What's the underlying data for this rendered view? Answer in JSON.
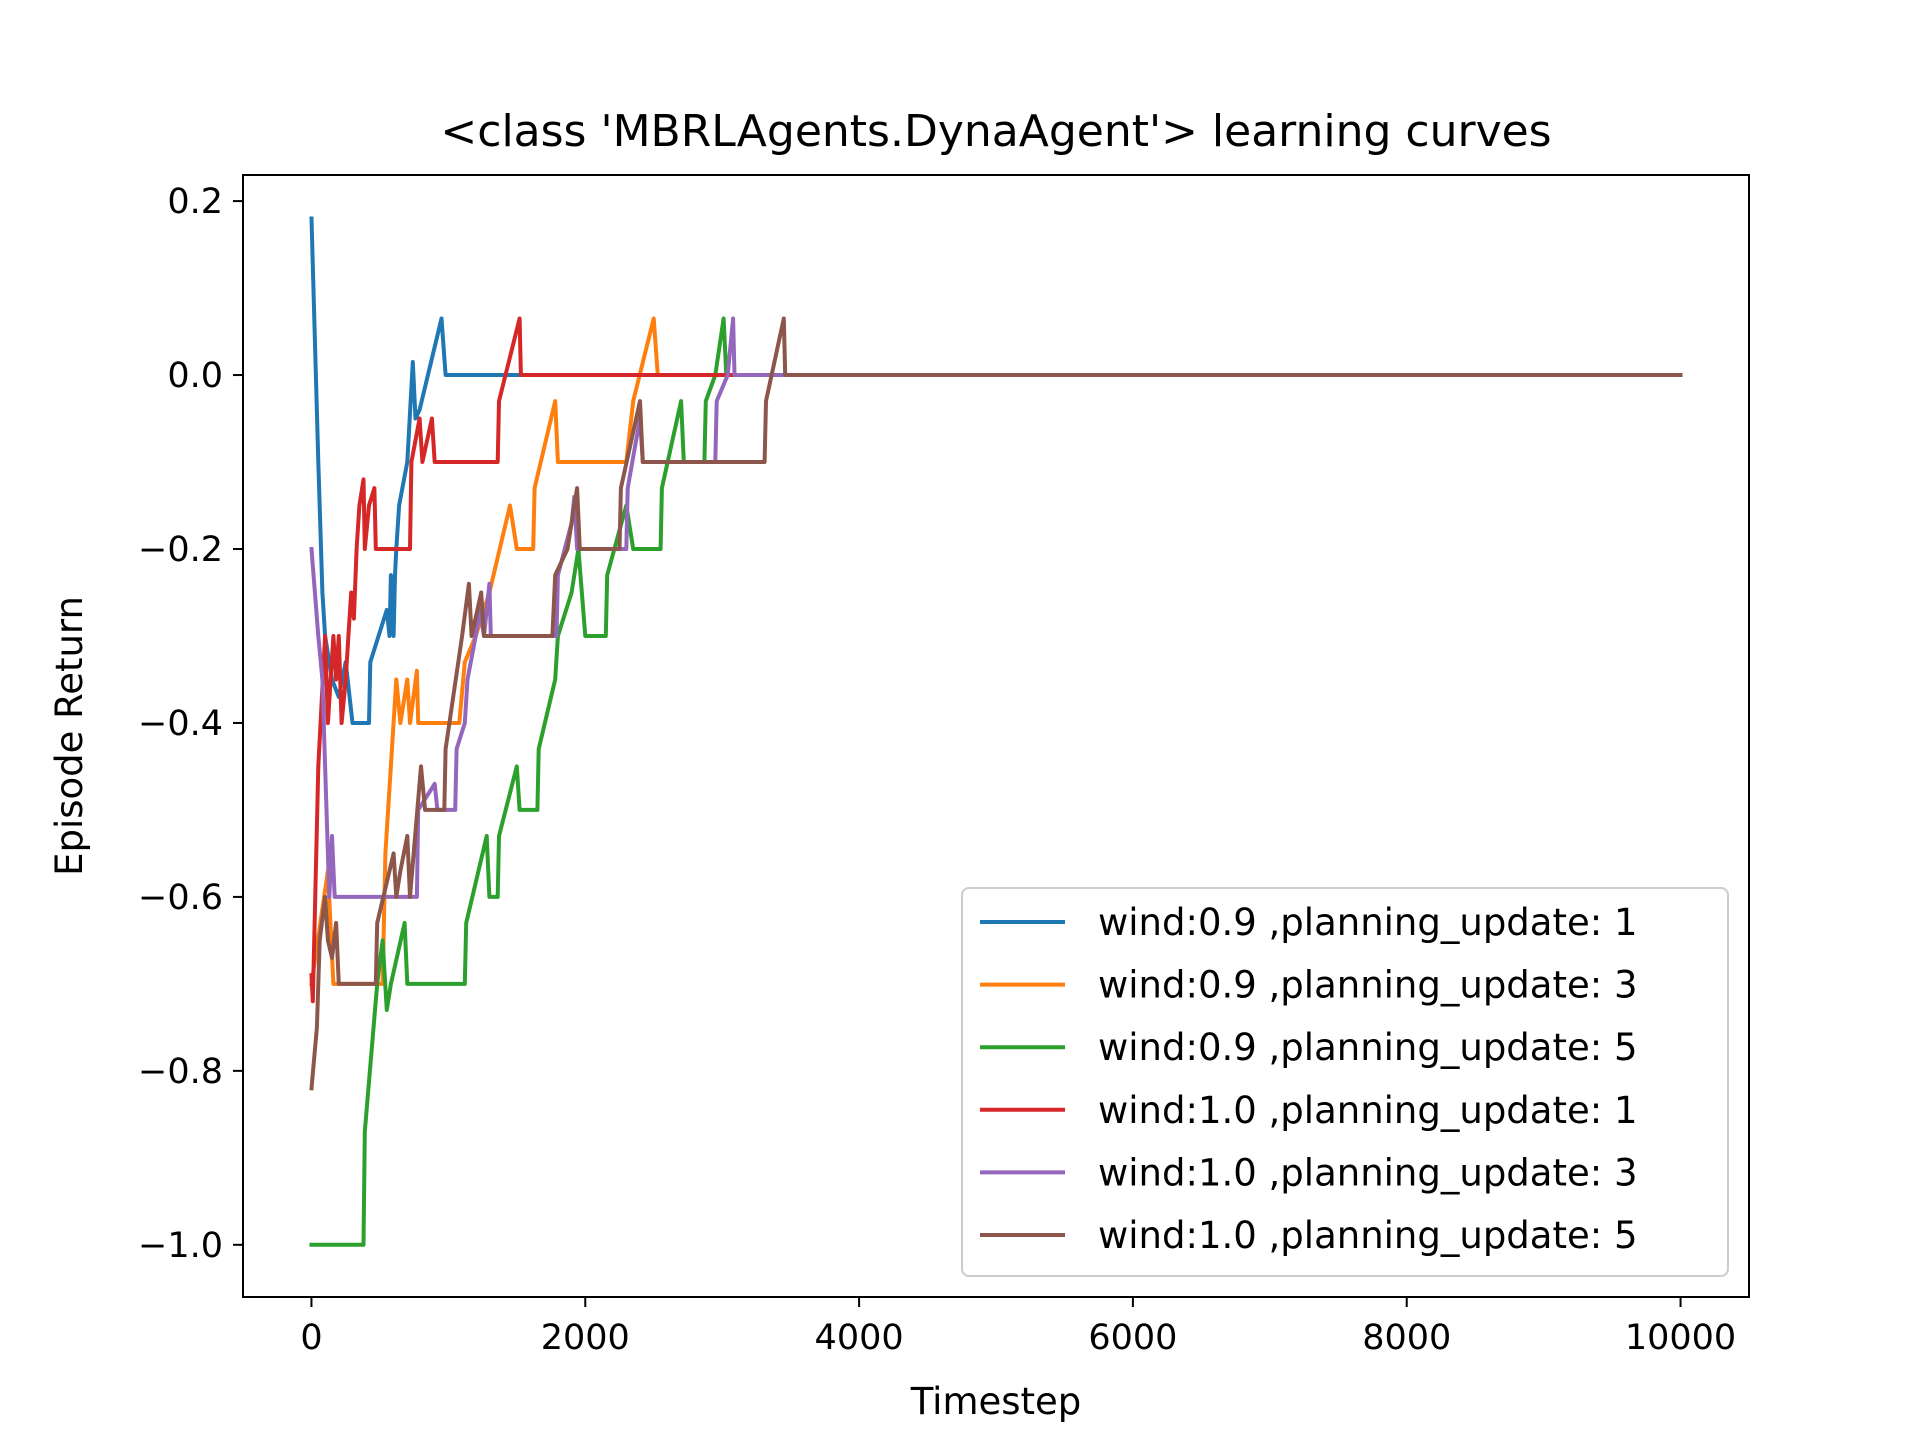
{
  "chart_data": {
    "type": "line",
    "title": "<class 'MBRLAgents.DynaAgent'> learning curves",
    "xlabel": "Timestep",
    "ylabel": "Episode Return",
    "xlim": [
      -500,
      10500
    ],
    "ylim": [
      -1.06,
      0.23
    ],
    "xticks": [
      0,
      2000,
      4000,
      6000,
      8000,
      10000
    ],
    "xtick_labels": [
      "0",
      "2000",
      "4000",
      "6000",
      "8000",
      "10000"
    ],
    "yticks": [
      0.2,
      0.0,
      -0.2,
      -0.4,
      -0.6,
      -0.8,
      -1.0
    ],
    "ytick_labels": [
      "0.2",
      "0.0",
      "−0.2",
      "−0.4",
      "−0.6",
      "−0.8",
      "−1.0"
    ],
    "grid": false,
    "legend_position": "lower-right",
    "series": [
      {
        "name": "wind:0.9 ,planning_update: 1",
        "color": "#1f77b4",
        "points": [
          [
            0,
            0.18
          ],
          [
            50,
            -0.1
          ],
          [
            80,
            -0.25
          ],
          [
            100,
            -0.3
          ],
          [
            150,
            -0.35
          ],
          [
            200,
            -0.37
          ],
          [
            250,
            -0.33
          ],
          [
            300,
            -0.4
          ],
          [
            420,
            -0.4
          ],
          [
            430,
            -0.33
          ],
          [
            550,
            -0.27
          ],
          [
            570,
            -0.3
          ],
          [
            580,
            -0.23
          ],
          [
            600,
            -0.3
          ],
          [
            610,
            -0.23
          ],
          [
            620,
            -0.2
          ],
          [
            640,
            -0.15
          ],
          [
            700,
            -0.1
          ],
          [
            740,
            0.015
          ],
          [
            760,
            -0.05
          ],
          [
            790,
            -0.04
          ],
          [
            950,
            0.065
          ],
          [
            980,
            0.0
          ],
          [
            10000,
            0.0
          ]
        ]
      },
      {
        "name": "wind:0.9 ,planning_update: 3",
        "color": "#ff7f0e",
        "points": [
          [
            0,
            -0.7
          ],
          [
            120,
            -0.57
          ],
          [
            160,
            -0.7
          ],
          [
            520,
            -0.7
          ],
          [
            540,
            -0.55
          ],
          [
            620,
            -0.35
          ],
          [
            650,
            -0.4
          ],
          [
            700,
            -0.35
          ],
          [
            720,
            -0.4
          ],
          [
            770,
            -0.34
          ],
          [
            780,
            -0.4
          ],
          [
            1080,
            -0.4
          ],
          [
            1120,
            -0.33
          ],
          [
            1200,
            -0.3
          ],
          [
            1300,
            -0.25
          ],
          [
            1450,
            -0.15
          ],
          [
            1500,
            -0.2
          ],
          [
            1620,
            -0.2
          ],
          [
            1630,
            -0.13
          ],
          [
            1780,
            -0.03
          ],
          [
            1800,
            -0.1
          ],
          [
            2300,
            -0.1
          ],
          [
            2350,
            -0.03
          ],
          [
            2500,
            0.065
          ],
          [
            2530,
            0.0
          ],
          [
            10000,
            0.0
          ]
        ]
      },
      {
        "name": "wind:0.9 ,planning_update: 5",
        "color": "#2ca02c",
        "points": [
          [
            0,
            -1.0
          ],
          [
            380,
            -1.0
          ],
          [
            390,
            -0.87
          ],
          [
            480,
            -0.7
          ],
          [
            520,
            -0.65
          ],
          [
            550,
            -0.73
          ],
          [
            580,
            -0.7
          ],
          [
            680,
            -0.63
          ],
          [
            700,
            -0.7
          ],
          [
            1120,
            -0.7
          ],
          [
            1130,
            -0.63
          ],
          [
            1280,
            -0.53
          ],
          [
            1300,
            -0.6
          ],
          [
            1360,
            -0.6
          ],
          [
            1370,
            -0.53
          ],
          [
            1500,
            -0.45
          ],
          [
            1520,
            -0.5
          ],
          [
            1650,
            -0.5
          ],
          [
            1660,
            -0.43
          ],
          [
            1780,
            -0.35
          ],
          [
            1800,
            -0.3
          ],
          [
            1900,
            -0.25
          ],
          [
            1950,
            -0.2
          ],
          [
            2000,
            -0.3
          ],
          [
            2150,
            -0.3
          ],
          [
            2160,
            -0.23
          ],
          [
            2300,
            -0.15
          ],
          [
            2350,
            -0.2
          ],
          [
            2550,
            -0.2
          ],
          [
            2560,
            -0.13
          ],
          [
            2700,
            -0.03
          ],
          [
            2720,
            -0.1
          ],
          [
            2870,
            -0.1
          ],
          [
            2880,
            -0.03
          ],
          [
            2950,
            0.0
          ],
          [
            3010,
            0.065
          ],
          [
            3030,
            0.0
          ],
          [
            10000,
            0.0
          ]
        ]
      },
      {
        "name": "wind:1.0 ,planning_update: 1",
        "color": "#d62728",
        "points": [
          [
            0,
            -0.69
          ],
          [
            10,
            -0.72
          ],
          [
            50,
            -0.45
          ],
          [
            100,
            -0.3
          ],
          [
            120,
            -0.4
          ],
          [
            160,
            -0.3
          ],
          [
            180,
            -0.35
          ],
          [
            200,
            -0.3
          ],
          [
            220,
            -0.4
          ],
          [
            250,
            -0.35
          ],
          [
            270,
            -0.3
          ],
          [
            290,
            -0.25
          ],
          [
            310,
            -0.28
          ],
          [
            330,
            -0.2
          ],
          [
            350,
            -0.15
          ],
          [
            380,
            -0.12
          ],
          [
            390,
            -0.2
          ],
          [
            420,
            -0.15
          ],
          [
            460,
            -0.13
          ],
          [
            470,
            -0.2
          ],
          [
            720,
            -0.2
          ],
          [
            730,
            -0.1
          ],
          [
            790,
            -0.05
          ],
          [
            810,
            -0.1
          ],
          [
            880,
            -0.05
          ],
          [
            900,
            -0.1
          ],
          [
            1360,
            -0.1
          ],
          [
            1370,
            -0.03
          ],
          [
            1520,
            0.065
          ],
          [
            1530,
            0.0
          ],
          [
            10000,
            0.0
          ]
        ]
      },
      {
        "name": "wind:1.0 ,planning_update: 3",
        "color": "#9467bd",
        "points": [
          [
            0,
            -0.2
          ],
          [
            50,
            -0.3
          ],
          [
            80,
            -0.35
          ],
          [
            100,
            -0.45
          ],
          [
            130,
            -0.6
          ],
          [
            150,
            -0.53
          ],
          [
            170,
            -0.6
          ],
          [
            770,
            -0.6
          ],
          [
            780,
            -0.5
          ],
          [
            900,
            -0.47
          ],
          [
            920,
            -0.5
          ],
          [
            1050,
            -0.5
          ],
          [
            1060,
            -0.43
          ],
          [
            1120,
            -0.4
          ],
          [
            1140,
            -0.35
          ],
          [
            1200,
            -0.3
          ],
          [
            1230,
            -0.27
          ],
          [
            1260,
            -0.3
          ],
          [
            1300,
            -0.24
          ],
          [
            1310,
            -0.3
          ],
          [
            1790,
            -0.3
          ],
          [
            1800,
            -0.23
          ],
          [
            1900,
            -0.17
          ],
          [
            1920,
            -0.14
          ],
          [
            1940,
            -0.2
          ],
          [
            2300,
            -0.2
          ],
          [
            2310,
            -0.13
          ],
          [
            2400,
            -0.05
          ],
          [
            2420,
            -0.1
          ],
          [
            2950,
            -0.1
          ],
          [
            2960,
            -0.03
          ],
          [
            3040,
            0.0
          ],
          [
            3080,
            0.065
          ],
          [
            3090,
            0.0
          ],
          [
            10000,
            0.0
          ]
        ]
      },
      {
        "name": "wind:1.0 ,planning_update: 5",
        "color": "#8c564b",
        "points": [
          [
            0,
            -0.82
          ],
          [
            40,
            -0.75
          ],
          [
            60,
            -0.65
          ],
          [
            100,
            -0.6
          ],
          [
            120,
            -0.65
          ],
          [
            150,
            -0.67
          ],
          [
            180,
            -0.63
          ],
          [
            200,
            -0.7
          ],
          [
            470,
            -0.7
          ],
          [
            480,
            -0.63
          ],
          [
            600,
            -0.55
          ],
          [
            620,
            -0.6
          ],
          [
            650,
            -0.57
          ],
          [
            700,
            -0.53
          ],
          [
            720,
            -0.6
          ],
          [
            800,
            -0.45
          ],
          [
            830,
            -0.5
          ],
          [
            970,
            -0.5
          ],
          [
            980,
            -0.43
          ],
          [
            1100,
            -0.3
          ],
          [
            1150,
            -0.24
          ],
          [
            1170,
            -0.3
          ],
          [
            1240,
            -0.25
          ],
          [
            1260,
            -0.3
          ],
          [
            1760,
            -0.3
          ],
          [
            1780,
            -0.23
          ],
          [
            1870,
            -0.2
          ],
          [
            1940,
            -0.13
          ],
          [
            1960,
            -0.2
          ],
          [
            2250,
            -0.2
          ],
          [
            2260,
            -0.13
          ],
          [
            2400,
            -0.03
          ],
          [
            2420,
            -0.1
          ],
          [
            3310,
            -0.1
          ],
          [
            3320,
            -0.03
          ],
          [
            3450,
            0.065
          ],
          [
            3460,
            0.0
          ],
          [
            10000,
            0.0
          ]
        ]
      }
    ]
  }
}
